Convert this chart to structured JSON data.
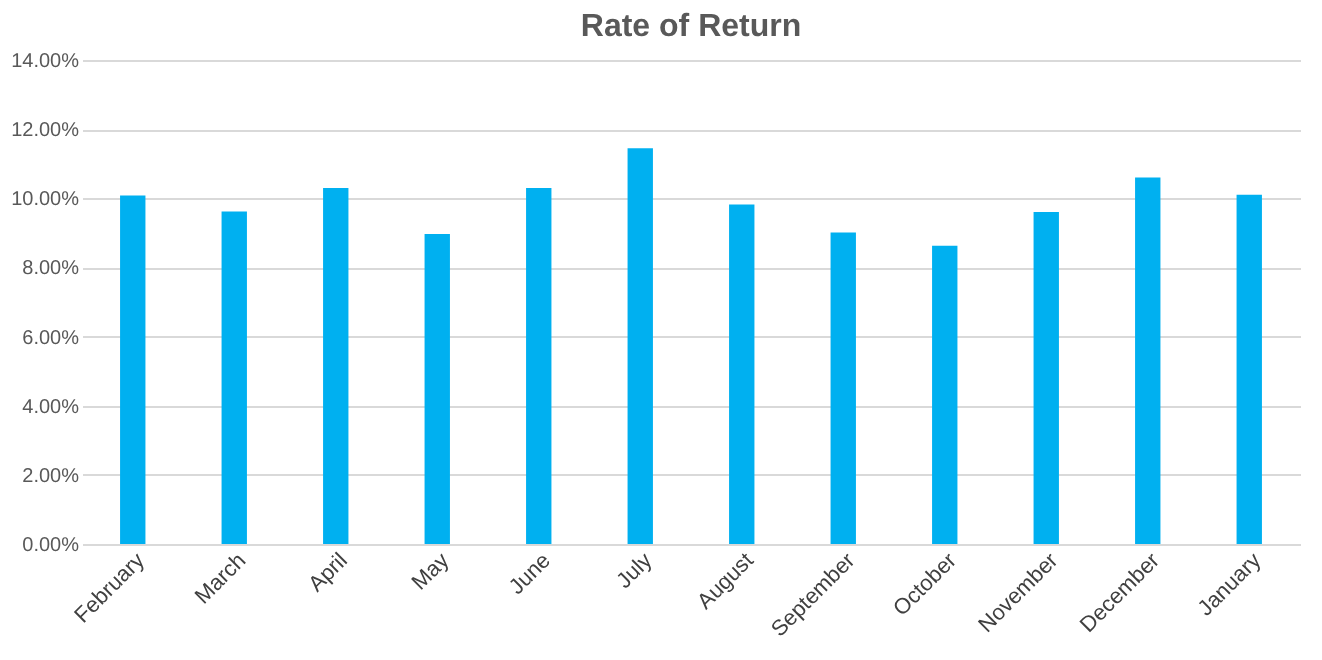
{
  "chart_data": {
    "type": "bar",
    "title": "Rate of Return",
    "categories": [
      "February",
      "March",
      "April",
      "May",
      "June",
      "July",
      "August",
      "September",
      "October",
      "November",
      "December",
      "January"
    ],
    "values": [
      10.08,
      9.62,
      10.3,
      8.97,
      10.3,
      11.45,
      9.82,
      9.01,
      8.63,
      9.6,
      10.6,
      10.1
    ],
    "color": "#00b0f0",
    "ylim": [
      0,
      14
    ],
    "yticks": [
      {
        "value": 0,
        "label": "0.00%"
      },
      {
        "value": 2,
        "label": "2.00%"
      },
      {
        "value": 4,
        "label": "4.00%"
      },
      {
        "value": 6,
        "label": "6.00%"
      },
      {
        "value": 8,
        "label": "8.00%"
      },
      {
        "value": 10,
        "label": "10.00%"
      },
      {
        "value": 12,
        "label": "12.00%"
      },
      {
        "value": 14,
        "label": "14.00%"
      }
    ],
    "grid": "y"
  }
}
